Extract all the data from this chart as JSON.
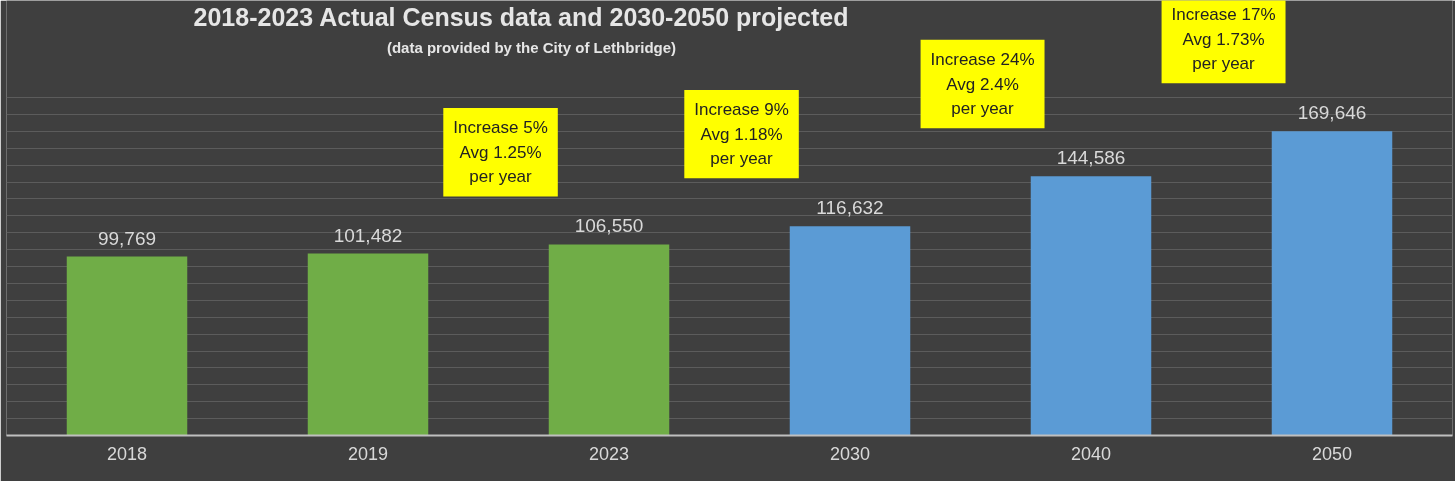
{
  "chart_data": {
    "type": "bar",
    "title": "2018-2023 Actual Census data and 2030-2050 projected",
    "subtitle": "(data provided by the City of Lethbridge)",
    "categories": [
      "2018",
      "2019",
      "2023",
      "2030",
      "2040",
      "2050"
    ],
    "values": [
      99769,
      101482,
      106550,
      116632,
      144586,
      169646
    ],
    "colors": [
      "#70ad47",
      "#70ad47",
      "#70ad47",
      "#5b9bd5",
      "#5b9bd5",
      "#5b9bd5"
    ],
    "value_labels": [
      "99,769",
      "101,482",
      "106,550",
      "116,632",
      "144,586",
      "169,646"
    ],
    "tick_labels": "x",
    "grid": "y",
    "annotations": [
      "Increase 5%\nAvg 1.25%\nper year",
      "Increase 9%\nAvg 1.18%\nper year",
      "Increase 24%\nAvg 2.4%\nper year",
      "Increase 17%\nAvg 1.73%\nper year"
    ]
  }
}
